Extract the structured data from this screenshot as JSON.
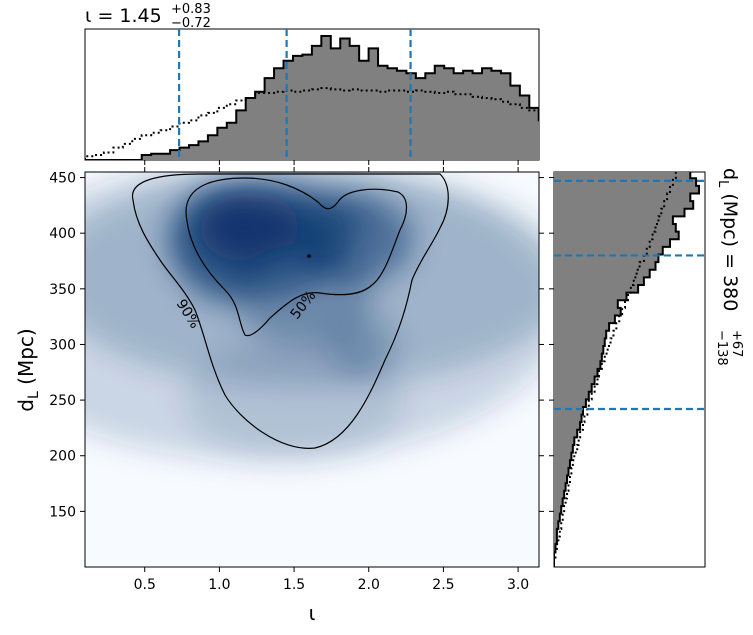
{
  "chart_data": {
    "type": "corner-plot",
    "x_param": {
      "symbol": "ι",
      "label": "ι",
      "title_main": "ι = 1.45",
      "plus": "+0.83",
      "minus": "−0.72",
      "median": 1.45,
      "lower": 0.73,
      "upper": 2.28,
      "xlim": [
        0.1,
        3.14
      ],
      "ticks": [
        0.5,
        1.0,
        1.5,
        2.0,
        2.5,
        3.0
      ],
      "tick_labels": [
        "0.5",
        "1.0",
        "1.5",
        "2.0",
        "2.5",
        "3.0"
      ]
    },
    "y_param": {
      "label_main": "d",
      "label_sub": "L",
      "label_unit": " (Mpc)",
      "title_main": "d",
      "title_sub": "L",
      "title_rest": " (Mpc) = 380",
      "plus": "+67",
      "minus": "−138",
      "median": 380,
      "lower": 242,
      "upper": 447,
      "ylim": [
        100,
        455
      ],
      "ticks": [
        150,
        200,
        250,
        300,
        350,
        400,
        450
      ],
      "tick_labels": [
        "150",
        "200",
        "250",
        "300",
        "350",
        "400",
        "450"
      ]
    },
    "contours": [
      {
        "label": "90%",
        "level": 0.9
      },
      {
        "label": "50%",
        "level": 0.5
      }
    ],
    "x_hist": {
      "bin_edges_start": 0.1,
      "bin_width": 0.0633,
      "posterior": [
        0.0,
        0.0,
        0.0,
        0.0,
        0.0,
        0.0,
        0.04,
        0.05,
        0.05,
        0.08,
        0.1,
        0.12,
        0.15,
        0.2,
        0.26,
        0.3,
        0.4,
        0.5,
        0.55,
        0.66,
        0.74,
        0.8,
        0.84,
        0.85,
        0.92,
        1.0,
        0.9,
        0.98,
        0.92,
        0.8,
        0.9,
        0.76,
        0.74,
        0.72,
        0.7,
        0.66,
        0.7,
        0.76,
        0.74,
        0.7,
        0.72,
        0.7,
        0.74,
        0.72,
        0.7,
        0.6,
        0.52,
        0.42,
        0.32,
        0.2,
        0.16,
        0.08,
        0.05,
        0.03,
        0.02,
        0.01,
        0.0,
        0.0
      ],
      "prior": [
        0.03,
        0.04,
        0.06,
        0.1,
        0.13,
        0.17,
        0.2,
        0.22,
        0.24,
        0.27,
        0.3,
        0.32,
        0.36,
        0.38,
        0.42,
        0.45,
        0.48,
        0.5,
        0.54,
        0.54,
        0.55,
        0.56,
        0.55,
        0.56,
        0.57,
        0.58,
        0.57,
        0.56,
        0.57,
        0.56,
        0.56,
        0.55,
        0.56,
        0.56,
        0.55,
        0.56,
        0.55,
        0.54,
        0.55,
        0.53,
        0.53,
        0.51,
        0.5,
        0.49,
        0.47,
        0.45,
        0.42,
        0.4,
        0.37,
        0.34,
        0.3,
        0.26,
        0.22,
        0.18,
        0.14,
        0.1,
        0.06,
        0.02
      ]
    },
    "y_hist": {
      "bin_edges_start": 100,
      "bin_width": 6.85,
      "posterior": [
        0.0,
        0.0,
        0.01,
        0.02,
        0.02,
        0.03,
        0.04,
        0.05,
        0.06,
        0.07,
        0.08,
        0.09,
        0.1,
        0.11,
        0.12,
        0.13,
        0.14,
        0.16,
        0.18,
        0.19,
        0.2,
        0.22,
        0.24,
        0.26,
        0.28,
        0.3,
        0.32,
        0.33,
        0.34,
        0.35,
        0.36,
        0.38,
        0.42,
        0.46,
        0.44,
        0.5,
        0.58,
        0.62,
        0.66,
        0.7,
        0.72,
        0.75,
        0.8,
        0.86,
        0.84,
        0.82,
        0.9,
        0.96,
        0.94,
        1.0,
        0.98,
        0.94,
        0.9,
        0.72
      ],
      "prior": [
        0.0,
        0.01,
        0.02,
        0.03,
        0.04,
        0.05,
        0.06,
        0.07,
        0.08,
        0.09,
        0.1,
        0.11,
        0.12,
        0.13,
        0.14,
        0.16,
        0.17,
        0.18,
        0.2,
        0.21,
        0.23,
        0.24,
        0.26,
        0.28,
        0.3,
        0.31,
        0.33,
        0.35,
        0.37,
        0.39,
        0.41,
        0.43,
        0.45,
        0.47,
        0.49,
        0.51,
        0.53,
        0.55,
        0.57,
        0.59,
        0.62,
        0.64,
        0.66,
        0.68,
        0.7,
        0.72,
        0.74,
        0.76,
        0.78,
        0.8,
        0.82,
        0.84,
        0.86,
        0.88
      ]
    },
    "colors": {
      "hist_fill": "#808080",
      "median_line": "#1f77b4",
      "density": "#08306b"
    }
  }
}
